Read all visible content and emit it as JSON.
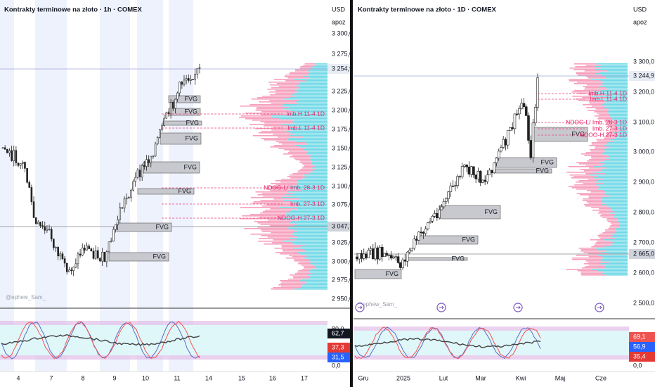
{
  "panels": [
    {
      "title": "Kontrakty terminowe na złoto · 1h · COMEX",
      "currency": "USD",
      "scale_mode": "apoz",
      "price_ticks": [
        "3 300,0",
        "3 275,0",
        "3 225,0",
        "3 200,0",
        "3 175,0",
        "3 150,0",
        "3 125,0",
        "3 100,0",
        "3 075,0",
        "3 025,0",
        "3 000,0",
        "2 975,0",
        "2 950,0"
      ],
      "price_badges": [
        "3 254,9",
        "3 047,7"
      ],
      "annotations": [
        "Imb.H  11-4 1D",
        "Imb.L  11-4 1D",
        "NDOG-L/ Imb.  28-3 1D",
        "Imb.  27-3 1D",
        "NDOG-H  27-3 1D"
      ],
      "fvg_label": "FVG",
      "watermark": "@ephew_Sam_",
      "osc_ticks": [
        "80,0",
        "0,0"
      ],
      "osc_badges": [
        "62,7",
        "37,3",
        "31,5"
      ],
      "time_labels": [
        "4",
        "7",
        "8",
        "9",
        "10",
        "11",
        "14",
        "15",
        "16",
        "17"
      ]
    },
    {
      "title": "Kontrakty terminowe na złoto · 1D · COMEX",
      "currency": "USD",
      "scale_mode": "apoz",
      "price_ticks": [
        "3 300,0",
        "3 200,0",
        "3 100,0",
        "3 000,0",
        "2 900,0",
        "2 800,0",
        "2 700,0",
        "2 600,0",
        "2 500,0"
      ],
      "price_badges": [
        "3 244,9",
        "2 665,0"
      ],
      "annotations": [
        "Imb.H  11-4 1D",
        "Imb.L  11-4 1D",
        "NDOG-L/ Imb.  28-3 1D",
        "Imb.  27-3 1D",
        "NDOG-H  27-3 1D"
      ],
      "fvg_label": "FVG",
      "watermark": "@ephew_Sam_",
      "osc_ticks": [
        "80,0",
        "0,0"
      ],
      "osc_badges": [
        "69,1",
        "56,9",
        "35,4"
      ],
      "time_labels": [
        "Gru",
        "2025",
        "Lut",
        "Mar",
        "Kwi",
        "Maj",
        "Cze"
      ]
    }
  ]
}
